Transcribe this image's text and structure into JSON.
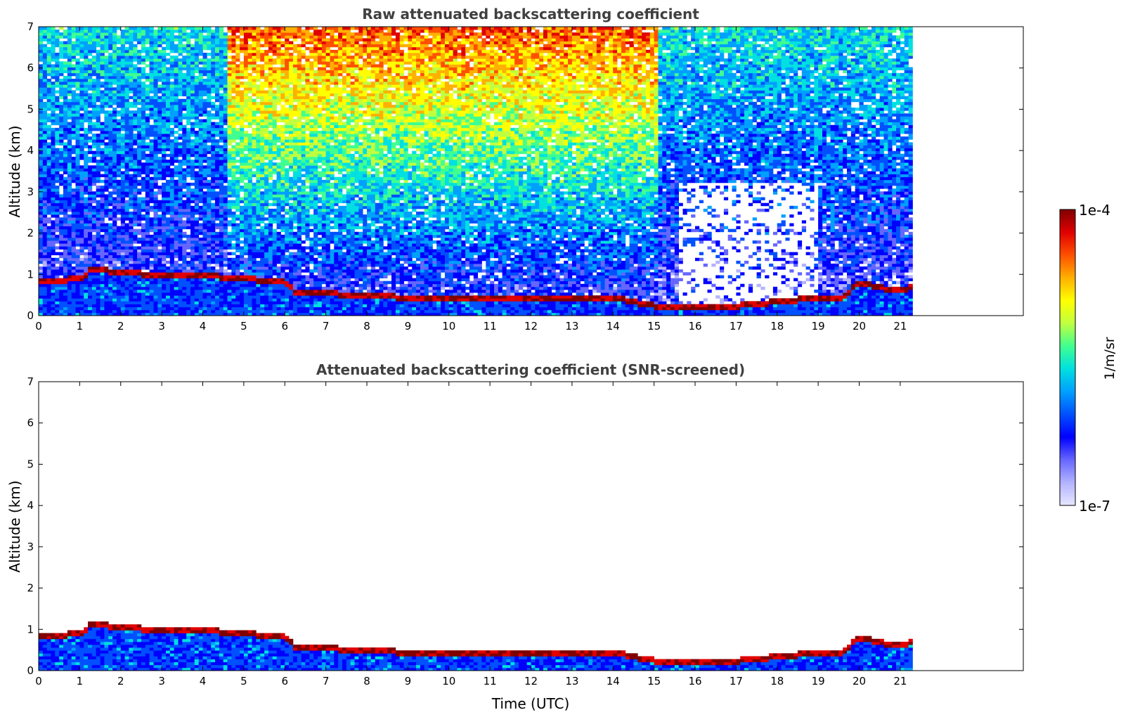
{
  "chart_data": [
    {
      "type": "heatmap",
      "title": "Raw attenuated backscattering coefficient",
      "ylabel": "Altitude (km)",
      "xlim": [
        0,
        24
      ],
      "ylim": [
        0,
        7
      ],
      "x_ticks": [
        0,
        1,
        2,
        3,
        4,
        5,
        6,
        7,
        8,
        9,
        10,
        11,
        12,
        13,
        14,
        15,
        16,
        17,
        18,
        19,
        20,
        21
      ],
      "y_ticks": [
        0,
        1,
        2,
        3,
        4,
        5,
        6,
        7
      ],
      "data_end_time": 21.3,
      "description_series": {
        "name": "aerosol_top_km",
        "x": [
          0,
          1,
          1.3,
          2,
          3,
          4,
          4.5,
          5,
          6,
          6.3,
          7,
          8,
          9,
          10,
          11,
          12,
          13,
          14,
          14.5,
          15,
          16,
          17,
          18,
          19,
          19.5,
          20,
          21,
          21.3
        ],
        "values": [
          0.85,
          0.9,
          1.15,
          1.05,
          1.0,
          1.0,
          0.95,
          0.9,
          0.85,
          0.55,
          0.55,
          0.5,
          0.45,
          0.45,
          0.45,
          0.45,
          0.45,
          0.45,
          0.35,
          0.25,
          0.2,
          0.25,
          0.35,
          0.45,
          0.4,
          0.8,
          0.6,
          0.7
        ]
      }
    },
    {
      "type": "heatmap",
      "title": "Attenuated backscattering coefficient (SNR-screened)",
      "xlabel": "Time (UTC)",
      "ylabel": "Altitude (km)",
      "xlim": [
        0,
        24
      ],
      "ylim": [
        0,
        7
      ],
      "x_ticks": [
        0,
        1,
        2,
        3,
        4,
        5,
        6,
        7,
        8,
        9,
        10,
        11,
        12,
        13,
        14,
        15,
        16,
        17,
        18,
        19,
        20,
        21
      ],
      "y_ticks": [
        0,
        1,
        2,
        3,
        4,
        5,
        6,
        7
      ],
      "data_end_time": 21.3
    }
  ],
  "colorbar": {
    "min_label": "1e-7",
    "max_label": "1e-4",
    "label": "1/m/sr",
    "colors": [
      "#e6e6ff",
      "#b3b3ff",
      "#6666ff",
      "#0000ff",
      "#0050ff",
      "#00a0ff",
      "#00e0e0",
      "#40ff90",
      "#c0ff40",
      "#ffff00",
      "#ffb000",
      "#ff5000",
      "#e00000",
      "#800000"
    ]
  }
}
